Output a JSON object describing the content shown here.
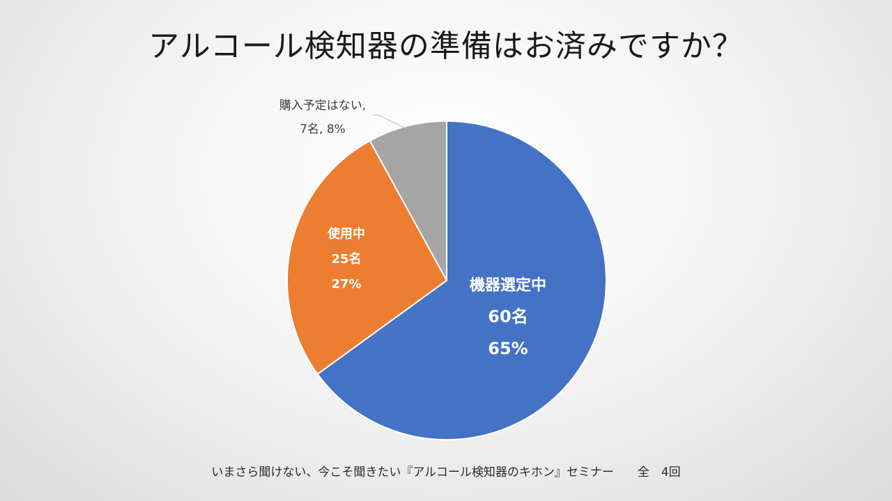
{
  "slide": {
    "title": "アルコール検知器の準備はお済みですか？",
    "footer": "いまさら聞けない、今こそ聞きたい『アルコール検知器のキホン』セミナー　　全　4回"
  },
  "chart_data": {
    "type": "pie",
    "start": "12-o'clock",
    "direction": "clockwise",
    "slices": [
      {
        "label": "機器選定中",
        "count": "60名",
        "percent": "65%",
        "value": 65,
        "color": "#4472C4",
        "label_color": "#ffffff",
        "label_position": "inside"
      },
      {
        "label": "使用中",
        "count": "25名",
        "percent": "27%",
        "value": 27,
        "color": "#ED7D31",
        "label_color": "#ffffff",
        "label_position": "inside"
      },
      {
        "label": "購入予定はない",
        "count": "7名",
        "percent": "8%",
        "value": 8,
        "color": "#A5A5A5",
        "label_color": "#404040",
        "label_position": "outside",
        "label_line1": "購入予定はない,",
        "label_line2": "7名, 8%"
      }
    ]
  }
}
